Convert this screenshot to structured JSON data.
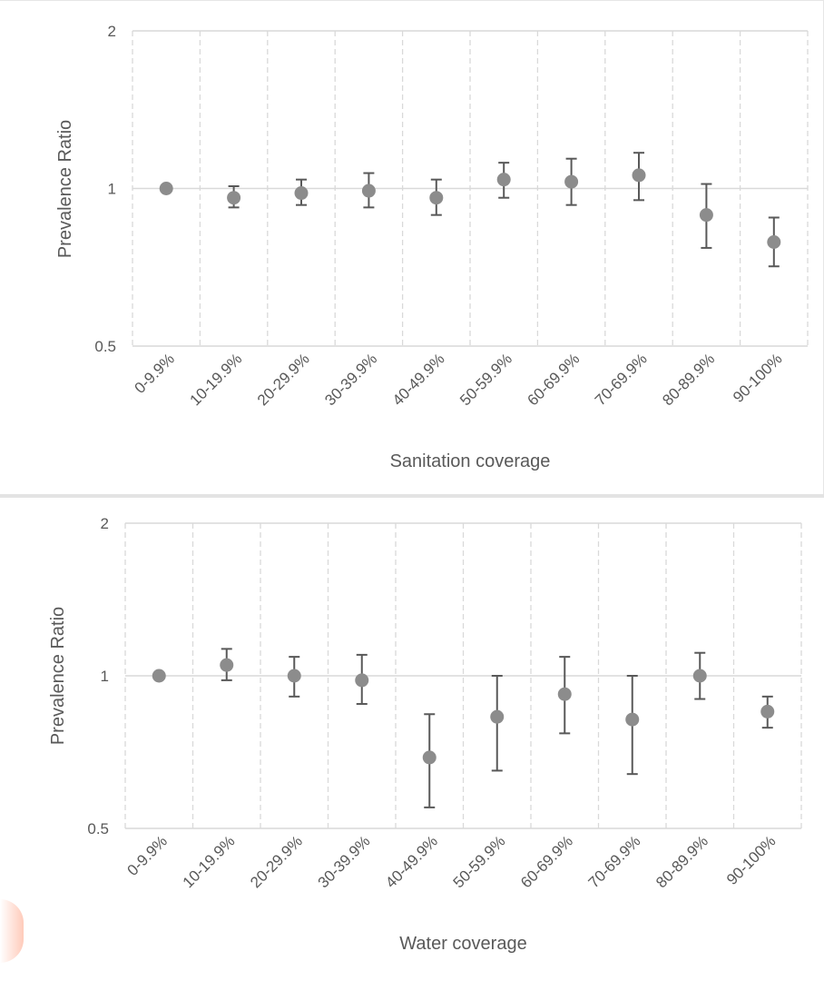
{
  "chart_data": [
    {
      "type": "scatter",
      "title": "",
      "xlabel": "Sanitation coverage",
      "ylabel": "Prevalence Ratio",
      "yscale": "log",
      "ylim": [
        0.5,
        2
      ],
      "yticks": [
        "0.5",
        "1",
        "2"
      ],
      "categories": [
        "0-9.9%",
        "10-19.9%",
        "20-29.9%",
        "30-39.9%",
        "40-49.9%",
        "50-59.9%",
        "60-69.9%",
        "70-69.9%",
        "80-89.9%",
        "90-100%"
      ],
      "values": [
        1.0,
        0.96,
        0.98,
        0.99,
        0.96,
        1.04,
        1.03,
        1.06,
        0.89,
        0.79
      ],
      "ci_low": [
        1.0,
        0.92,
        0.93,
        0.92,
        0.89,
        0.96,
        0.93,
        0.95,
        0.77,
        0.71
      ],
      "ci_high": [
        1.0,
        1.01,
        1.04,
        1.07,
        1.04,
        1.12,
        1.14,
        1.17,
        1.02,
        0.88
      ],
      "grid": true
    },
    {
      "type": "scatter",
      "title": "",
      "xlabel": "Water coverage",
      "ylabel": "Prevalence Ratio",
      "yscale": "log",
      "ylim": [
        0.5,
        2
      ],
      "yticks": [
        "0.5",
        "1",
        "2"
      ],
      "categories": [
        "0-9.9%",
        "10-19.9%",
        "20-29.9%",
        "30-39.9%",
        "40-49.9%",
        "50-59.9%",
        "60-69.9%",
        "70-69.9%",
        "80-89.9%",
        "90-100%"
      ],
      "values": [
        1.0,
        1.05,
        1.0,
        0.98,
        0.69,
        0.83,
        0.92,
        0.82,
        1.0,
        0.85
      ],
      "ci_low": [
        1.0,
        0.98,
        0.91,
        0.88,
        0.55,
        0.65,
        0.77,
        0.64,
        0.9,
        0.79
      ],
      "ci_high": [
        1.0,
        1.13,
        1.09,
        1.1,
        0.84,
        1.0,
        1.09,
        1.0,
        1.11,
        0.91
      ],
      "grid": true
    }
  ],
  "colors": {
    "marker": "#8c8c8c",
    "errorbar": "#595959",
    "grid": "#d9d9d9",
    "axis_text": "#595959"
  }
}
